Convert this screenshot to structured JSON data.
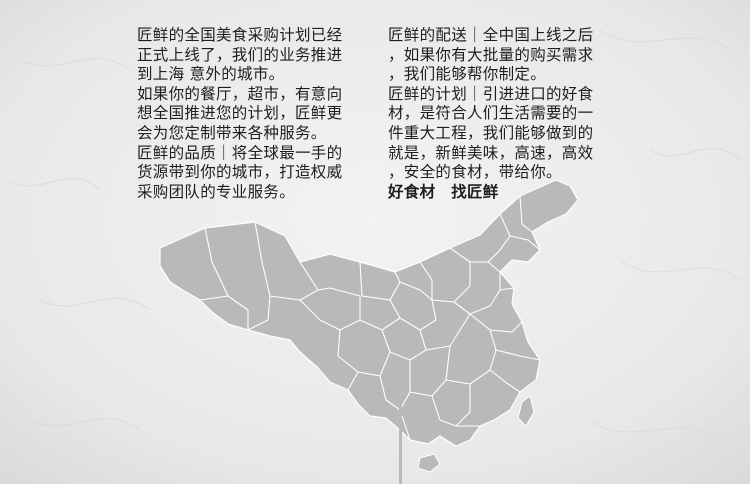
{
  "left_column": {
    "paragraphs": [
      "匠鲜的全国美食采购计划已经\n正式上线了，我们的业务推进\n到上海 意外的城市。",
      "如果你的餐厅，超市，有意向\n想全国推进您的计划，匠鲜更\n会为您定制带来各种服务。",
      "匠鲜的品质｜将全球最一手的\n货源带到你的城市，打造权威\n采购团队的专业服务。"
    ]
  },
  "right_column": {
    "paragraphs": [
      "匠鲜的配送｜全中国上线之后\n，如果你有大批量的购买需求\n，我们能够帮你制定。",
      "匠鲜的计划｜引进进口的好食\n材，是符合人们生活需要的一\n件重大工程，我们能够做到的\n就是，新鲜美味，高速，高效\n，安全的食材，带给你。"
    ],
    "slogan": "好食材　找匠鲜"
  },
  "colors": {
    "background": "#ececea",
    "map_fill": "#b9b9b7",
    "map_border": "#ffffff",
    "text": "#1e1e1e"
  },
  "illustration": "china-map"
}
